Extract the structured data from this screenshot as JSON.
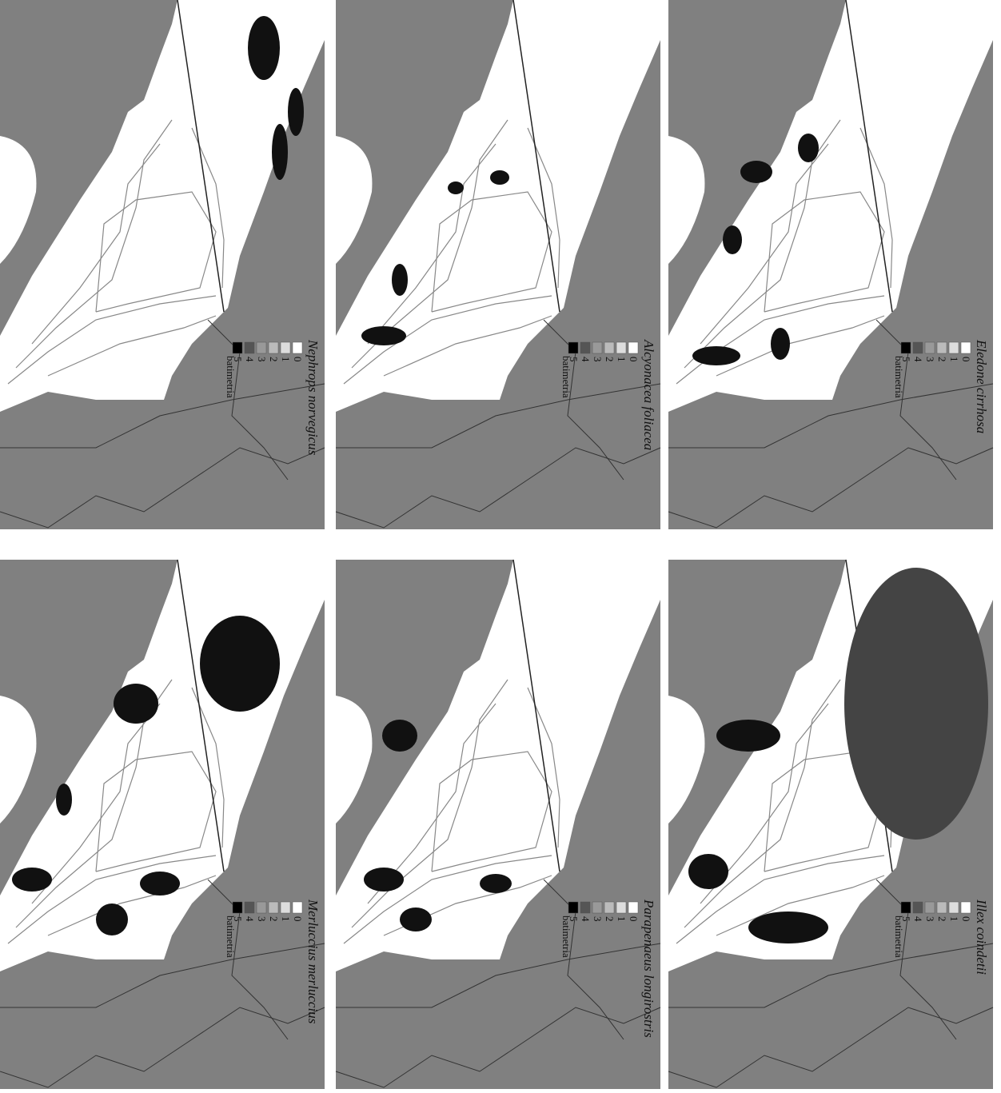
{
  "panels": [
    {
      "species": "Nephrops norvegicus",
      "legend": {
        "labels": [
          0,
          1,
          2,
          3,
          4,
          5
        ],
        "title": "batimetria"
      }
    },
    {
      "species": "Alcyonacea foliacea",
      "legend": {
        "labels": [
          0,
          1,
          2,
          3,
          4,
          5
        ],
        "title": "batimetria"
      }
    },
    {
      "species": "Eledone cirrhosa",
      "legend": {
        "labels": [
          0,
          1,
          2,
          3,
          4,
          5
        ],
        "title": "batimetria"
      }
    },
    {
      "species": "Merluccius merluccius",
      "legend": {
        "labels": [
          0,
          1,
          2,
          3,
          4,
          5
        ],
        "title": "batimetria"
      }
    },
    {
      "species": "Parapenaeus longirostris",
      "legend": {
        "labels": [
          0,
          1,
          2,
          3,
          4,
          5
        ],
        "title": "batimetria"
      }
    },
    {
      "species": "Illex coindetii",
      "legend": {
        "labels": [
          0,
          1,
          2,
          3,
          4,
          5
        ],
        "title": "batimetria"
      }
    }
  ]
}
